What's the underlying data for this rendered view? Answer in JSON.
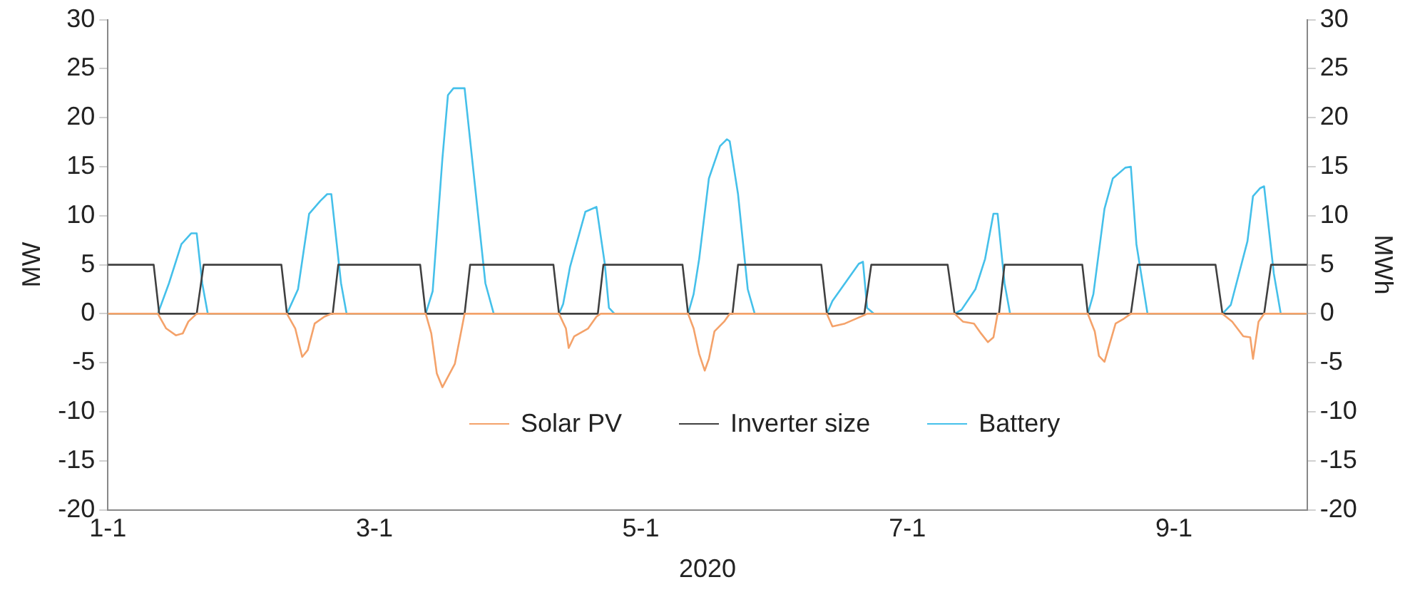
{
  "chart_data": {
    "type": "line",
    "xlabel": "2020",
    "ylabel": "MW",
    "y2label": "MWh",
    "xlim": [
      "2020-01-01T00:00",
      "2020-01-10T00:00"
    ],
    "xticks": [
      {
        "value": "2020-01-01",
        "label": "1-1"
      },
      {
        "value": "2020-01-03",
        "label": "3-1"
      },
      {
        "value": "2020-01-05",
        "label": "5-1"
      },
      {
        "value": "2020-01-07",
        "label": "7-1"
      },
      {
        "value": "2020-01-09",
        "label": "9-1"
      }
    ],
    "ylim": [
      -20,
      30
    ],
    "yticks": [
      -20,
      -15,
      -10,
      -5,
      0,
      5,
      10,
      15,
      20,
      25,
      30
    ],
    "y2lim": [
      -20,
      30
    ],
    "y2ticks": [
      -20,
      -15,
      -10,
      -5,
      0,
      5,
      10,
      15,
      20,
      25,
      30
    ],
    "grid": false,
    "legend": "bottom",
    "marker": "none",
    "line_style": "solid",
    "series": [
      {
        "name": "Solar PV",
        "color": "#f4a26a",
        "x": [
          "2020-01-01T00:00",
          "2020-01-01T09:00",
          "2020-01-01T10:30",
          "2020-01-01T12:15",
          "2020-01-01T13:30",
          "2020-01-01T14:30",
          "2020-01-01T16:00",
          "2020-01-02T08:15",
          "2020-01-02T09:45",
          "2020-01-02T11:00",
          "2020-01-02T12:00",
          "2020-01-02T13:15",
          "2020-01-02T15:00",
          "2020-01-02T16:15",
          "2020-01-03T09:15",
          "2020-01-03T10:15",
          "2020-01-03T11:15",
          "2020-01-03T12:15",
          "2020-01-03T14:30",
          "2020-01-03T16:15",
          "2020-01-04T09:15",
          "2020-01-04T10:30",
          "2020-01-04T11:00",
          "2020-01-04T12:00",
          "2020-01-04T14:30",
          "2020-01-04T16:00",
          "2020-01-04T16:45",
          "2020-01-05T08:30",
          "2020-01-05T09:30",
          "2020-01-05T10:30",
          "2020-01-05T11:30",
          "2020-01-05T12:15",
          "2020-01-05T13:15",
          "2020-01-05T15:00",
          "2020-01-05T16:00",
          "2020-01-06T09:30",
          "2020-01-06T10:30",
          "2020-01-06T12:45",
          "2020-01-06T16:00",
          "2020-01-06T16:45",
          "2020-01-07T08:30",
          "2020-01-07T10:00",
          "2020-01-07T12:00",
          "2020-01-07T13:15",
          "2020-01-07T14:30",
          "2020-01-07T15:30",
          "2020-01-07T16:15",
          "2020-01-08T08:30",
          "2020-01-08T09:45",
          "2020-01-08T10:30",
          "2020-01-08T11:30",
          "2020-01-08T13:30",
          "2020-01-08T15:00",
          "2020-01-08T16:15",
          "2020-01-09T08:45",
          "2020-01-09T10:30",
          "2020-01-09T12:30",
          "2020-01-09T13:45",
          "2020-01-09T14:15",
          "2020-01-09T15:15",
          "2020-01-09T16:15",
          "2020-01-10T00:00"
        ],
        "values": [
          0,
          0,
          -1.5,
          -2.2,
          -2.0,
          -0.8,
          0,
          0,
          -1.5,
          -4.4,
          -3.7,
          -1.0,
          -0.3,
          0,
          0,
          -2.0,
          -6.1,
          -7.5,
          -5.1,
          0,
          0,
          -1.5,
          -3.5,
          -2.3,
          -1.5,
          -0.3,
          0,
          0,
          -1.5,
          -4.1,
          -5.8,
          -4.6,
          -1.8,
          -0.8,
          0,
          0,
          -1.3,
          -1.0,
          -0.2,
          0,
          0,
          -0.8,
          -1.0,
          -2.0,
          -2.9,
          -2.4,
          0,
          0,
          -1.8,
          -4.3,
          -4.9,
          -1.0,
          -0.5,
          0,
          0,
          -0.8,
          -2.3,
          -2.4,
          -4.6,
          -0.8,
          0,
          0
        ]
      },
      {
        "name": "Inverter size",
        "color": "#404040",
        "x": [
          "2020-01-01T00:00",
          "2020-01-01T08:15",
          "2020-01-01T09:15",
          "2020-01-01T16:00",
          "2020-01-01T17:15",
          "2020-01-02T07:15",
          "2020-01-02T08:15",
          "2020-01-02T16:30",
          "2020-01-02T17:30",
          "2020-01-03T08:15",
          "2020-01-03T09:15",
          "2020-01-03T16:15",
          "2020-01-03T17:15",
          "2020-01-04T08:15",
          "2020-01-04T09:15",
          "2020-01-04T16:15",
          "2020-01-04T17:15",
          "2020-01-05T07:30",
          "2020-01-05T08:30",
          "2020-01-05T16:30",
          "2020-01-05T17:30",
          "2020-01-06T08:30",
          "2020-01-06T09:30",
          "2020-01-06T16:15",
          "2020-01-06T17:30",
          "2020-01-07T07:15",
          "2020-01-07T08:30",
          "2020-01-07T16:30",
          "2020-01-07T17:30",
          "2020-01-08T07:30",
          "2020-01-08T08:30",
          "2020-01-08T16:15",
          "2020-01-08T17:30",
          "2020-01-09T07:30",
          "2020-01-09T08:45",
          "2020-01-09T16:15",
          "2020-01-09T17:30",
          "2020-01-10T00:00"
        ],
        "values": [
          5,
          5,
          0,
          0,
          5,
          5,
          0,
          0,
          5,
          5,
          0,
          0,
          5,
          5,
          0,
          0,
          5,
          5,
          0,
          0,
          5,
          5,
          0,
          0,
          5,
          5,
          0,
          0,
          5,
          5,
          0,
          0,
          5,
          5,
          0,
          0,
          5,
          5
        ]
      },
      {
        "name": "Battery",
        "color": "#45c0ea",
        "x": [
          "2020-01-01T00:00",
          "2020-01-01T09:00",
          "2020-01-01T11:00",
          "2020-01-01T13:15",
          "2020-01-01T15:00",
          "2020-01-01T16:00",
          "2020-01-01T17:00",
          "2020-01-01T18:00",
          "2020-01-02T08:15",
          "2020-01-02T10:15",
          "2020-01-02T12:15",
          "2020-01-02T14:15",
          "2020-01-02T15:30",
          "2020-01-02T16:15",
          "2020-01-02T18:00",
          "2020-01-02T19:00",
          "2020-01-03T09:15",
          "2020-01-03T10:30",
          "2020-01-03T12:15",
          "2020-01-03T13:15",
          "2020-01-03T14:15",
          "2020-01-03T16:15",
          "2020-01-03T20:00",
          "2020-01-03T21:30",
          "2020-01-04T09:15",
          "2020-01-04T10:00",
          "2020-01-04T11:15",
          "2020-01-04T14:00",
          "2020-01-04T16:00",
          "2020-01-04T17:30",
          "2020-01-04T18:15",
          "2020-01-04T19:15",
          "2020-01-05T08:30",
          "2020-01-05T09:30",
          "2020-01-05T10:30",
          "2020-01-05T12:15",
          "2020-01-05T14:15",
          "2020-01-05T15:30",
          "2020-01-05T16:00",
          "2020-01-05T17:30",
          "2020-01-05T19:15",
          "2020-01-05T20:30",
          "2020-01-06T09:30",
          "2020-01-06T10:30",
          "2020-01-06T12:45",
          "2020-01-06T15:15",
          "2020-01-06T16:00",
          "2020-01-06T16:45",
          "2020-01-06T18:00",
          "2020-01-07T08:30",
          "2020-01-07T09:45",
          "2020-01-07T12:15",
          "2020-01-07T14:00",
          "2020-01-07T15:30",
          "2020-01-07T16:15",
          "2020-01-07T17:30",
          "2020-01-07T18:30",
          "2020-01-08T08:30",
          "2020-01-08T09:30",
          "2020-01-08T11:30",
          "2020-01-08T13:00",
          "2020-01-08T15:15",
          "2020-01-08T16:15",
          "2020-01-08T17:15",
          "2020-01-08T19:15",
          "2020-01-09T08:45",
          "2020-01-09T10:15",
          "2020-01-09T13:15",
          "2020-01-09T14:15",
          "2020-01-09T15:30",
          "2020-01-09T16:15",
          "2020-01-09T18:00",
          "2020-01-09T19:15",
          "2020-01-10T00:00"
        ],
        "values": [
          0,
          0,
          3.1,
          7.1,
          8.2,
          8.2,
          3.1,
          0,
          0,
          2.5,
          10.2,
          11.5,
          12.2,
          12.2,
          3.1,
          0,
          0,
          2.3,
          15.8,
          22.3,
          23.0,
          23.0,
          3.1,
          0,
          0,
          1.0,
          4.8,
          10.4,
          10.9,
          5.1,
          0.6,
          0,
          0,
          2.0,
          5.6,
          13.8,
          17.1,
          17.8,
          17.6,
          12.2,
          2.5,
          0,
          0,
          1.3,
          3.1,
          5.1,
          5.3,
          0.6,
          0,
          0,
          0.4,
          2.5,
          5.6,
          10.2,
          10.2,
          3.1,
          0,
          0,
          2.0,
          10.7,
          13.8,
          14.9,
          15.0,
          7.1,
          0,
          0,
          0.9,
          7.4,
          12.0,
          12.8,
          13.0,
          4.1,
          0,
          0
        ]
      }
    ]
  }
}
